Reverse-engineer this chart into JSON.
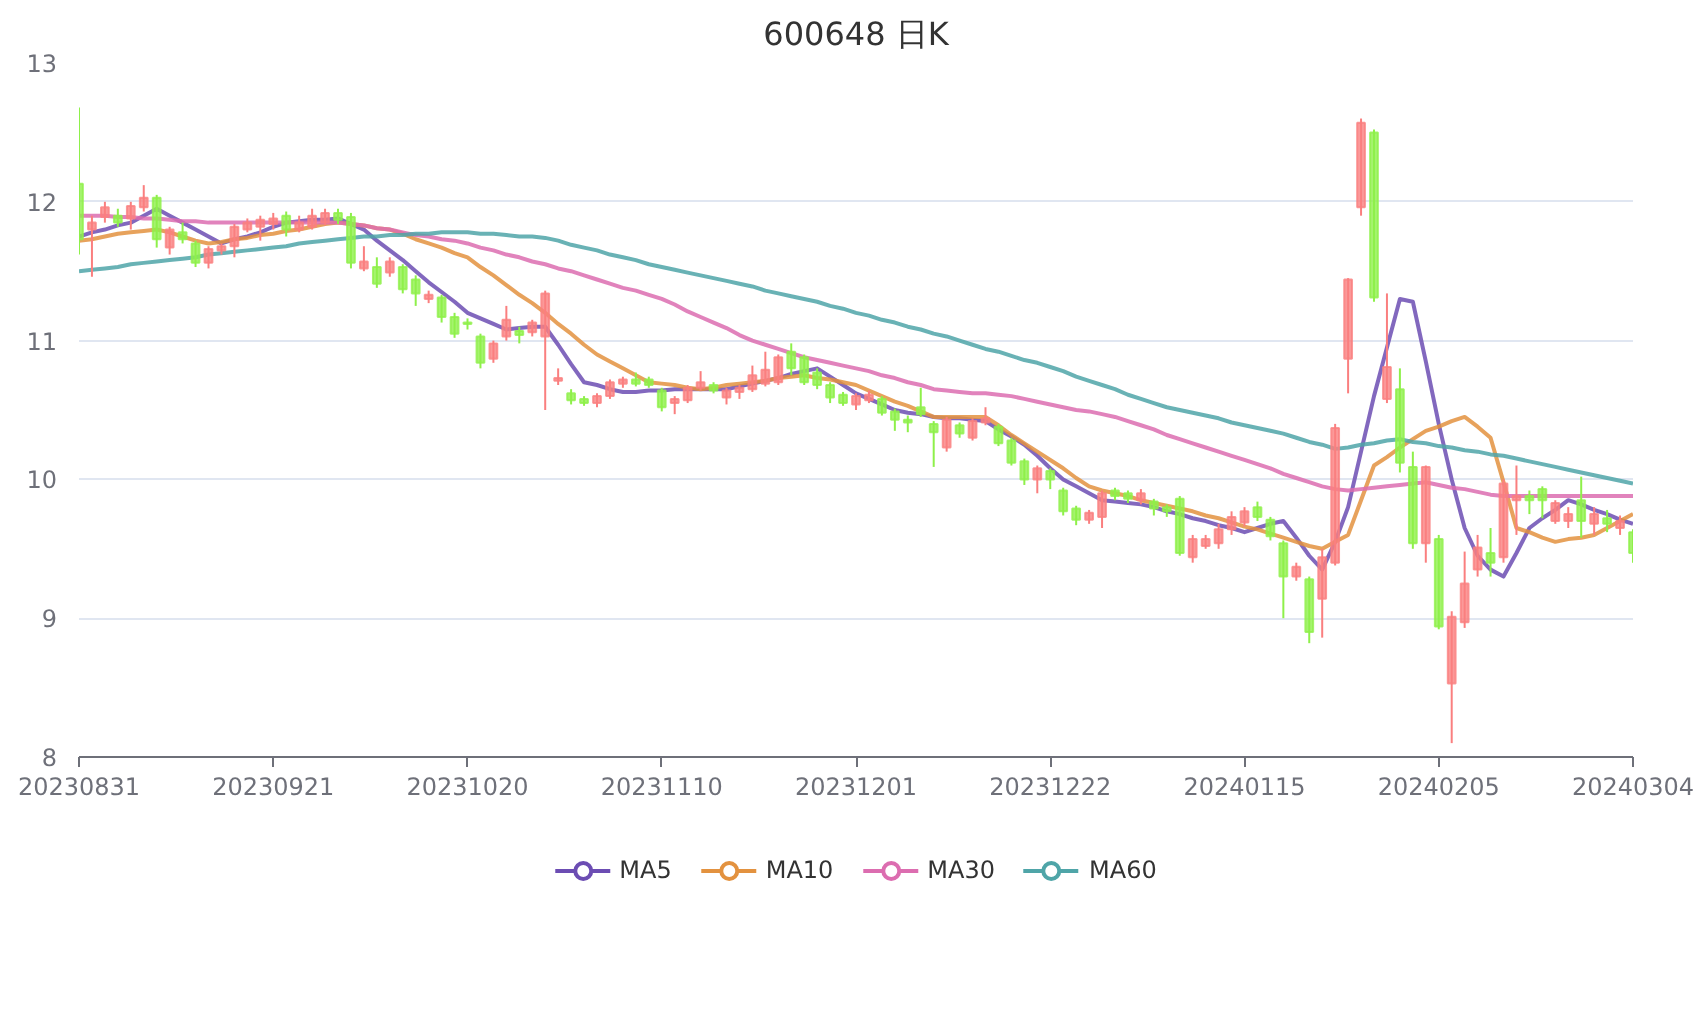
{
  "chart_data": {
    "type": "candlestick",
    "title": "600648 日K",
    "categories": [
      "20230831",
      null,
      null,
      null,
      null,
      null,
      null,
      null,
      null,
      null,
      null,
      null,
      null,
      null,
      null,
      "20230921",
      null,
      null,
      null,
      null,
      null,
      null,
      null,
      null,
      null,
      null,
      null,
      null,
      null,
      null,
      "20231020",
      null,
      null,
      null,
      null,
      null,
      null,
      null,
      null,
      null,
      null,
      null,
      null,
      null,
      null,
      "20231110",
      null,
      null,
      null,
      null,
      null,
      null,
      null,
      null,
      null,
      null,
      null,
      null,
      null,
      null,
      "20231201",
      null,
      null,
      null,
      null,
      null,
      null,
      null,
      null,
      null,
      null,
      null,
      null,
      null,
      null,
      "20231222",
      null,
      null,
      null,
      null,
      null,
      null,
      null,
      null,
      null,
      null,
      null,
      null,
      null,
      null,
      "20240115",
      null,
      null,
      null,
      null,
      null,
      null,
      null,
      null,
      null,
      null,
      null,
      null,
      null,
      null,
      "20240205",
      null,
      null,
      null,
      null,
      null,
      null,
      null,
      null,
      null,
      null,
      null,
      null,
      null,
      null,
      "20240304"
    ],
    "colors": [
      "#8ef04a",
      "#fa7f7f",
      "#fa7f7f",
      "#8ef04a",
      "#fa7f7f",
      "#fa7f7f",
      "#8ef04a",
      "#fa7f7f",
      "#8ef04a",
      "#8ef04a",
      "#fa7f7f",
      "#fa7f7f",
      "#fa7f7f",
      "#fa7f7f",
      "#fa7f7f",
      "#fa7f7f",
      "#8ef04a",
      "#fa7f7f",
      "#fa7f7f",
      "#fa7f7f",
      "#8ef04a",
      "#8ef04a",
      "#fa7f7f",
      "#8ef04a",
      "#fa7f7f",
      "#8ef04a",
      "#8ef04a",
      "#fa7f7f",
      "#8ef04a",
      "#8ef04a",
      "#8ef04a",
      "#8ef04a",
      "#fa7f7f",
      "#fa7f7f",
      "#8ef04a",
      "#fa7f7f",
      "#fa7f7f",
      "#fa7f7f",
      "#8ef04a",
      "#8ef04a",
      "#fa7f7f",
      "#fa7f7f",
      "#fa7f7f",
      "#8ef04a",
      "#8ef04a",
      "#8ef04a",
      "#fa7f7f",
      "#fa7f7f",
      "#fa7f7f",
      "#8ef04a",
      "#fa7f7f",
      "#fa7f7f",
      "#fa7f7f",
      "#fa7f7f",
      "#fa7f7f",
      "#8ef04a",
      "#8ef04a",
      "#8ef04a",
      "#8ef04a",
      "#8ef04a",
      "#fa7f7f",
      "#fa7f7f",
      "#8ef04a",
      "#8ef04a",
      "#8ef04a",
      "#8ef04a",
      "#8ef04a",
      "#fa7f7f",
      "#8ef04a",
      "#fa7f7f",
      "#fa7f7f",
      "#8ef04a",
      "#8ef04a",
      "#8ef04a",
      "#fa7f7f",
      "#8ef04a",
      "#8ef04a",
      "#8ef04a",
      "#fa7f7f",
      "#fa7f7f",
      "#8ef04a",
      "#8ef04a",
      "#fa7f7f",
      "#8ef04a",
      "#8ef04a",
      "#8ef04a",
      "#fa7f7f",
      "#fa7f7f",
      "#fa7f7f",
      "#fa7f7f",
      "#fa7f7f",
      "#8ef04a",
      "#8ef04a",
      "#8ef04a",
      "#fa7f7f",
      "#8ef04a",
      "#fa7f7f",
      "#fa7f7f",
      "#fa7f7f",
      "#fa7f7f",
      "#8ef04a",
      "#fa7f7f",
      "#8ef04a",
      "#8ef04a",
      "#fa7f7f",
      "#8ef04a",
      "#fa7f7f",
      "#fa7f7f",
      "#fa7f7f",
      "#8ef04a",
      "#fa7f7f",
      "#fa7f7f",
      "#8ef04a",
      "#8ef04a",
      "#fa7f7f",
      "#fa7f7f",
      "#8ef04a",
      "#fa7f7f",
      "#8ef04a",
      "#fa7f7f",
      "#8ef04a"
    ],
    "ohlc": [
      [
        12.13,
        12.68,
        11.62,
        11.73
      ],
      [
        11.8,
        11.9,
        11.46,
        11.85
      ],
      [
        11.89,
        12.0,
        11.85,
        11.96
      ],
      [
        11.9,
        11.95,
        11.82,
        11.85
      ],
      [
        11.88,
        12.0,
        11.8,
        11.97
      ],
      [
        11.96,
        12.12,
        11.93,
        12.03
      ],
      [
        12.03,
        12.05,
        11.67,
        11.73
      ],
      [
        11.67,
        11.82,
        11.62,
        11.8
      ],
      [
        11.78,
        11.85,
        11.7,
        11.73
      ],
      [
        11.7,
        11.72,
        11.53,
        11.56
      ],
      [
        11.56,
        11.68,
        11.52,
        11.66
      ],
      [
        11.65,
        11.7,
        11.62,
        11.68
      ],
      [
        11.68,
        11.84,
        11.6,
        11.82
      ],
      [
        11.8,
        11.88,
        11.78,
        11.85
      ],
      [
        11.82,
        11.9,
        11.72,
        11.87
      ],
      [
        11.84,
        11.92,
        11.8,
        11.88
      ],
      [
        11.9,
        11.93,
        11.75,
        11.8
      ],
      [
        11.8,
        11.9,
        11.78,
        11.85
      ],
      [
        11.82,
        11.95,
        11.8,
        11.9
      ],
      [
        11.85,
        11.95,
        11.83,
        11.92
      ],
      [
        11.92,
        11.95,
        11.84,
        11.87
      ],
      [
        11.89,
        11.92,
        11.52,
        11.56
      ],
      [
        11.52,
        11.68,
        11.5,
        11.57
      ],
      [
        11.53,
        11.6,
        11.38,
        11.41
      ],
      [
        11.49,
        11.6,
        11.46,
        11.57
      ],
      [
        11.53,
        11.55,
        11.34,
        11.37
      ],
      [
        11.44,
        11.47,
        11.25,
        11.34
      ],
      [
        11.3,
        11.36,
        11.27,
        11.33
      ],
      [
        11.31,
        11.33,
        11.13,
        11.17
      ],
      [
        11.17,
        11.2,
        11.02,
        11.05
      ],
      [
        11.13,
        11.16,
        11.08,
        11.12
      ],
      [
        11.03,
        11.05,
        10.8,
        10.84
      ],
      [
        10.87,
        11.0,
        10.84,
        10.98
      ],
      [
        11.03,
        11.25,
        11.0,
        11.15
      ],
      [
        11.07,
        11.1,
        10.98,
        11.04
      ],
      [
        11.06,
        11.15,
        11.03,
        11.13
      ],
      [
        11.03,
        11.36,
        10.5,
        11.34
      ],
      [
        10.71,
        10.8,
        10.68,
        10.73
      ],
      [
        10.62,
        10.65,
        10.54,
        10.57
      ],
      [
        10.58,
        10.6,
        10.53,
        10.55
      ],
      [
        10.55,
        10.62,
        10.52,
        10.6
      ],
      [
        10.6,
        10.72,
        10.58,
        10.7
      ],
      [
        10.69,
        10.74,
        10.66,
        10.72
      ],
      [
        10.72,
        10.77,
        10.67,
        10.69
      ],
      [
        10.72,
        10.74,
        10.66,
        10.68
      ],
      [
        10.64,
        10.66,
        10.49,
        10.52
      ],
      [
        10.55,
        10.6,
        10.47,
        10.58
      ],
      [
        10.57,
        10.68,
        10.55,
        10.66
      ],
      [
        10.66,
        10.78,
        10.64,
        10.7
      ],
      [
        10.68,
        10.7,
        10.62,
        10.64
      ],
      [
        10.59,
        10.66,
        10.54,
        10.64
      ],
      [
        10.63,
        10.68,
        10.58,
        10.66
      ],
      [
        10.65,
        10.82,
        10.63,
        10.75
      ],
      [
        10.69,
        10.92,
        10.67,
        10.79
      ],
      [
        10.7,
        10.9,
        10.68,
        10.88
      ],
      [
        10.92,
        10.98,
        10.75,
        10.8
      ],
      [
        10.88,
        10.9,
        10.68,
        10.7
      ],
      [
        10.77,
        10.8,
        10.65,
        10.68
      ],
      [
        10.68,
        10.7,
        10.55,
        10.59
      ],
      [
        10.61,
        10.63,
        10.53,
        10.55
      ],
      [
        10.54,
        10.62,
        10.5,
        10.6
      ],
      [
        10.57,
        10.64,
        10.55,
        10.61
      ],
      [
        10.58,
        10.6,
        10.46,
        10.48
      ],
      [
        10.49,
        10.51,
        10.35,
        10.43
      ],
      [
        10.43,
        10.46,
        10.34,
        10.41
      ],
      [
        10.52,
        10.66,
        10.45,
        10.47
      ],
      [
        10.4,
        10.42,
        10.09,
        10.34
      ],
      [
        10.23,
        10.45,
        10.2,
        10.43
      ],
      [
        10.39,
        10.41,
        10.3,
        10.33
      ],
      [
        10.3,
        10.44,
        10.28,
        10.42
      ],
      [
        10.41,
        10.52,
        10.39,
        10.44
      ],
      [
        10.38,
        10.4,
        10.24,
        10.26
      ],
      [
        10.28,
        10.3,
        10.1,
        10.12
      ],
      [
        10.13,
        10.15,
        9.96,
        10.0
      ],
      [
        10.0,
        10.1,
        9.9,
        10.08
      ],
      [
        10.06,
        10.08,
        9.93,
        10.0
      ],
      [
        9.92,
        9.94,
        9.74,
        9.77
      ],
      [
        9.79,
        9.81,
        9.67,
        9.71
      ],
      [
        9.71,
        9.78,
        9.68,
        9.76
      ],
      [
        9.73,
        9.92,
        9.65,
        9.9
      ],
      [
        9.92,
        9.94,
        9.85,
        9.88
      ],
      [
        9.9,
        9.92,
        9.83,
        9.86
      ],
      [
        9.85,
        9.93,
        9.82,
        9.9
      ],
      [
        9.84,
        9.86,
        9.74,
        9.79
      ],
      [
        9.8,
        9.82,
        9.73,
        9.77
      ],
      [
        9.86,
        9.88,
        9.45,
        9.47
      ],
      [
        9.44,
        9.6,
        9.4,
        9.57
      ],
      [
        9.52,
        9.6,
        9.5,
        9.57
      ],
      [
        9.54,
        9.68,
        9.5,
        9.64
      ],
      [
        9.64,
        9.77,
        9.6,
        9.73
      ],
      [
        9.69,
        9.8,
        9.66,
        9.77
      ],
      [
        9.8,
        9.84,
        9.7,
        9.73
      ],
      [
        9.71,
        9.73,
        9.56,
        9.59
      ],
      [
        9.54,
        9.56,
        9.0,
        9.3
      ],
      [
        9.3,
        9.4,
        9.27,
        9.37
      ],
      [
        9.28,
        9.3,
        8.82,
        8.9
      ],
      [
        9.14,
        9.5,
        8.86,
        9.44
      ],
      [
        9.4,
        10.4,
        9.38,
        10.37
      ],
      [
        10.87,
        11.45,
        10.62,
        11.44
      ],
      [
        11.96,
        12.6,
        11.9,
        12.57
      ],
      [
        12.5,
        12.52,
        11.28,
        11.31
      ],
      [
        10.58,
        11.34,
        10.55,
        10.81
      ],
      [
        10.65,
        10.8,
        10.05,
        10.12
      ],
      [
        10.09,
        10.2,
        9.5,
        9.54
      ],
      [
        9.54,
        10.1,
        9.4,
        10.09
      ],
      [
        9.57,
        9.6,
        8.92,
        8.94
      ],
      [
        8.53,
        9.05,
        8.1,
        9.01
      ],
      [
        8.97,
        9.48,
        8.93,
        9.25
      ],
      [
        9.35,
        9.6,
        9.3,
        9.51
      ],
      [
        9.47,
        9.65,
        9.3,
        9.4
      ],
      [
        9.44,
        10.0,
        9.4,
        9.97
      ],
      [
        9.85,
        10.1,
        9.6,
        9.88
      ],
      [
        9.88,
        9.92,
        9.75,
        9.85
      ],
      [
        9.93,
        9.95,
        9.72,
        9.85
      ],
      [
        9.7,
        9.85,
        9.68,
        9.83
      ],
      [
        9.7,
        9.8,
        9.65,
        9.75
      ],
      [
        9.85,
        10.02,
        9.58,
        9.7
      ],
      [
        9.68,
        9.8,
        9.6,
        9.75
      ],
      [
        9.72,
        9.78,
        9.62,
        9.68
      ],
      [
        9.65,
        9.74,
        9.6,
        9.7
      ],
      [
        9.62,
        9.64,
        9.4,
        9.47
      ]
    ],
    "series": [
      {
        "name": "MA5",
        "type": "line",
        "color": "#6c4db3",
        "values": [
          11.75,
          11.78,
          11.8,
          11.83,
          11.85,
          11.9,
          11.95,
          11.9,
          11.85,
          11.8,
          11.75,
          11.7,
          11.73,
          11.75,
          11.78,
          11.82,
          11.85,
          11.86,
          11.87,
          11.87,
          11.88,
          11.84,
          11.8,
          11.72,
          11.65,
          11.58,
          11.5,
          11.42,
          11.35,
          11.28,
          11.2,
          11.16,
          11.12,
          11.08,
          11.09,
          11.1,
          11.1,
          10.97,
          10.83,
          10.7,
          10.68,
          10.65,
          10.63,
          10.63,
          10.64,
          10.64,
          10.65,
          10.65,
          10.65,
          10.65,
          10.65,
          10.67,
          10.69,
          10.71,
          10.73,
          10.76,
          10.78,
          10.8,
          10.74,
          10.68,
          10.62,
          10.58,
          10.54,
          10.5,
          10.48,
          10.47,
          10.45,
          10.44,
          10.44,
          10.43,
          10.42,
          10.36,
          10.31,
          10.25,
          10.17,
          10.08,
          10.0,
          9.95,
          9.9,
          9.85,
          9.84,
          9.83,
          9.82,
          9.8,
          9.77,
          9.75,
          9.72,
          9.7,
          9.67,
          9.65,
          9.62,
          9.65,
          9.68,
          9.7,
          9.58,
          9.45,
          9.35,
          9.55,
          9.8,
          10.2,
          10.6,
          10.95,
          11.3,
          11.28,
          10.85,
          10.4,
          10.0,
          9.65,
          9.45,
          9.35,
          9.3,
          9.47,
          9.65,
          9.72,
          9.78,
          9.85,
          9.82,
          9.78,
          9.75,
          9.71,
          9.68
        ]
      },
      {
        "name": "MA10",
        "type": "line",
        "color": "#e3923f",
        "values": [
          11.72,
          11.73,
          11.75,
          11.77,
          11.78,
          11.79,
          11.8,
          11.78,
          11.75,
          11.72,
          11.7,
          11.71,
          11.73,
          11.74,
          11.76,
          11.77,
          11.79,
          11.8,
          11.82,
          11.84,
          11.85,
          11.84,
          11.83,
          11.81,
          11.8,
          11.77,
          11.73,
          11.7,
          11.67,
          11.63,
          11.6,
          11.53,
          11.47,
          11.4,
          11.33,
          11.27,
          11.2,
          11.12,
          11.05,
          10.97,
          10.9,
          10.85,
          10.8,
          10.75,
          10.7,
          10.69,
          10.68,
          10.66,
          10.65,
          10.66,
          10.68,
          10.69,
          10.7,
          10.71,
          10.73,
          10.74,
          10.75,
          10.73,
          10.72,
          10.7,
          10.68,
          10.64,
          10.6,
          10.56,
          10.53,
          10.49,
          10.45,
          10.45,
          10.45,
          10.45,
          10.45,
          10.39,
          10.32,
          10.26,
          10.2,
          10.14,
          10.08,
          10.01,
          9.95,
          9.92,
          9.9,
          9.88,
          9.85,
          9.83,
          9.81,
          9.79,
          9.77,
          9.74,
          9.72,
          9.69,
          9.66,
          9.64,
          9.61,
          9.58,
          9.55,
          9.52,
          9.5,
          9.55,
          9.6,
          9.85,
          10.1,
          10.16,
          10.23,
          10.29,
          10.35,
          10.38,
          10.42,
          10.45,
          10.38,
          10.3,
          9.98,
          9.65,
          9.62,
          9.58,
          9.55,
          9.57,
          9.58,
          9.6,
          9.65,
          9.7,
          9.75
        ]
      },
      {
        "name": "MA30",
        "type": "line",
        "color": "#dc6db0",
        "values": [
          11.9,
          11.9,
          11.9,
          11.89,
          11.89,
          11.88,
          11.88,
          11.87,
          11.86,
          11.86,
          11.85,
          11.85,
          11.85,
          11.85,
          11.85,
          11.85,
          11.85,
          11.85,
          11.85,
          11.85,
          11.85,
          11.84,
          11.83,
          11.81,
          11.8,
          11.78,
          11.76,
          11.75,
          11.73,
          11.72,
          11.7,
          11.67,
          11.65,
          11.62,
          11.6,
          11.57,
          11.55,
          11.52,
          11.5,
          11.47,
          11.44,
          11.41,
          11.38,
          11.36,
          11.33,
          11.3,
          11.26,
          11.21,
          11.17,
          11.13,
          11.09,
          11.04,
          11.0,
          10.97,
          10.94,
          10.91,
          10.88,
          10.86,
          10.84,
          10.82,
          10.8,
          10.78,
          10.75,
          10.73,
          10.7,
          10.68,
          10.65,
          10.64,
          10.63,
          10.62,
          10.62,
          10.61,
          10.6,
          10.58,
          10.56,
          10.54,
          10.52,
          10.5,
          10.49,
          10.47,
          10.45,
          10.42,
          10.39,
          10.36,
          10.32,
          10.29,
          10.26,
          10.23,
          10.2,
          10.17,
          10.14,
          10.11,
          10.08,
          10.04,
          10.01,
          9.98,
          9.95,
          9.93,
          9.92,
          9.93,
          9.94,
          9.95,
          9.96,
          9.97,
          9.98,
          9.96,
          9.94,
          9.93,
          9.91,
          9.89,
          9.88,
          9.88,
          9.88,
          9.88,
          9.88,
          9.88,
          9.88,
          9.88,
          9.88,
          9.88,
          9.88
        ]
      },
      {
        "name": "MA60",
        "type": "line",
        "color": "#4fa5a8",
        "values": [
          11.5,
          11.51,
          11.52,
          11.53,
          11.55,
          11.56,
          11.57,
          11.58,
          11.59,
          11.6,
          11.62,
          11.63,
          11.64,
          11.65,
          11.66,
          11.67,
          11.68,
          11.7,
          11.71,
          11.72,
          11.73,
          11.74,
          11.75,
          11.75,
          11.76,
          11.76,
          11.77,
          11.77,
          11.78,
          11.78,
          11.78,
          11.77,
          11.77,
          11.76,
          11.75,
          11.75,
          11.74,
          11.72,
          11.69,
          11.67,
          11.65,
          11.62,
          11.6,
          11.58,
          11.55,
          11.53,
          11.51,
          11.49,
          11.47,
          11.45,
          11.43,
          11.41,
          11.39,
          11.36,
          11.34,
          11.32,
          11.3,
          11.28,
          11.25,
          11.23,
          11.2,
          11.18,
          11.15,
          11.13,
          11.1,
          11.08,
          11.05,
          11.03,
          11.0,
          10.97,
          10.94,
          10.92,
          10.89,
          10.86,
          10.84,
          10.81,
          10.78,
          10.74,
          10.71,
          10.68,
          10.65,
          10.61,
          10.58,
          10.55,
          10.52,
          10.5,
          10.48,
          10.46,
          10.44,
          10.41,
          10.39,
          10.37,
          10.35,
          10.33,
          10.3,
          10.27,
          10.25,
          10.22,
          10.23,
          10.25,
          10.26,
          10.28,
          10.29,
          10.27,
          10.26,
          10.24,
          10.23,
          10.21,
          10.2,
          10.18,
          10.17,
          10.15,
          10.13,
          10.11,
          10.09,
          10.07,
          10.05,
          10.03,
          10.01,
          9.99,
          9.97
        ]
      }
    ],
    "ylim": [
      8,
      13
    ],
    "yticks": [
      8,
      9,
      10,
      11,
      12,
      13
    ],
    "grid": "y",
    "legend": "bottom"
  }
}
